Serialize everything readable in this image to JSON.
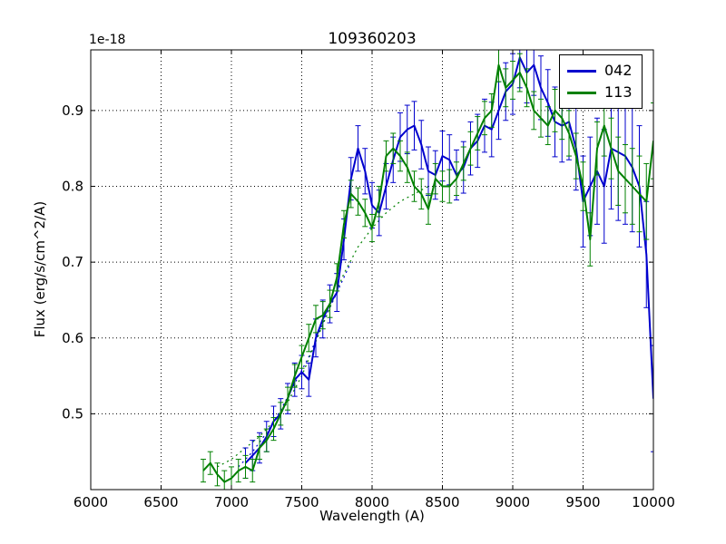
{
  "figure": {
    "title": "109360203",
    "offset_text": "1e-18",
    "xlabel": "Wavelength (A)",
    "ylabel": "Flux (erg/s/cm^2/A)"
  },
  "chart_data": {
    "type": "line",
    "title": "109360203",
    "xlabel": "Wavelength (A)",
    "ylabel": "Flux (erg/s/cm^2/A)",
    "y_offset_factor": "1e-18",
    "xlim": [
      6000,
      10000
    ],
    "ylim": [
      0.4,
      0.98
    ],
    "xticks": [
      6000,
      6500,
      7000,
      7500,
      8000,
      8500,
      9000,
      9500,
      10000
    ],
    "yticks": [
      0.5,
      0.6,
      0.7,
      0.8,
      0.9
    ],
    "grid": true,
    "grid_style": "dotted",
    "legend_position": "upper right",
    "series": [
      {
        "name": "042",
        "color": "#0000cd",
        "style": "solid",
        "in_legend": true,
        "x": [
          7100,
          7150,
          7200,
          7250,
          7300,
          7350,
          7400,
          7450,
          7500,
          7550,
          7600,
          7650,
          7700,
          7750,
          7800,
          7850,
          7900,
          7950,
          8000,
          8050,
          8100,
          8150,
          8200,
          8250,
          8300,
          8350,
          8400,
          8450,
          8500,
          8550,
          8600,
          8650,
          8700,
          8750,
          8800,
          8850,
          8900,
          8950,
          9000,
          9050,
          9100,
          9150,
          9200,
          9250,
          9300,
          9350,
          9400,
          9450,
          9500,
          9550,
          9600,
          9650,
          9700,
          9750,
          9800,
          9850,
          9900,
          9950,
          10000
        ],
        "y": [
          0.435,
          0.445,
          0.455,
          0.47,
          0.49,
          0.5,
          0.52,
          0.545,
          0.555,
          0.545,
          0.6,
          0.625,
          0.645,
          0.66,
          0.73,
          0.81,
          0.85,
          0.82,
          0.775,
          0.765,
          0.8,
          0.835,
          0.865,
          0.875,
          0.88,
          0.855,
          0.82,
          0.815,
          0.84,
          0.835,
          0.815,
          0.825,
          0.85,
          0.86,
          0.88,
          0.875,
          0.9,
          0.925,
          0.935,
          0.97,
          0.95,
          0.96,
          0.93,
          0.91,
          0.885,
          0.88,
          0.885,
          0.85,
          0.78,
          0.8,
          0.82,
          0.8,
          0.85,
          0.845,
          0.84,
          0.825,
          0.8,
          0.71,
          0.52
        ],
        "yerr": [
          0.02,
          0.02,
          0.02,
          0.02,
          0.02,
          0.02,
          0.02,
          0.022,
          0.022,
          0.022,
          0.025,
          0.025,
          0.025,
          0.025,
          0.027,
          0.028,
          0.03,
          0.03,
          0.03,
          0.03,
          0.03,
          0.03,
          0.032,
          0.032,
          0.032,
          0.032,
          0.032,
          0.032,
          0.033,
          0.033,
          0.033,
          0.034,
          0.035,
          0.035,
          0.035,
          0.036,
          0.038,
          0.038,
          0.04,
          0.04,
          0.04,
          0.04,
          0.042,
          0.044,
          0.046,
          0.048,
          0.05,
          0.055,
          0.06,
          0.065,
          0.07,
          0.075,
          0.08,
          0.09,
          0.09,
          0.085,
          0.08,
          0.07,
          0.07
        ]
      },
      {
        "name": "113",
        "color": "#008000",
        "style": "solid",
        "in_legend": true,
        "x": [
          6800,
          6850,
          6900,
          6950,
          7000,
          7050,
          7100,
          7150,
          7200,
          7250,
          7300,
          7350,
          7400,
          7450,
          7500,
          7550,
          7600,
          7650,
          7700,
          7750,
          7800,
          7850,
          7900,
          7950,
          8000,
          8050,
          8100,
          8150,
          8200,
          8250,
          8300,
          8350,
          8400,
          8450,
          8500,
          8550,
          8600,
          8650,
          8700,
          8750,
          8800,
          8850,
          8900,
          8950,
          9000,
          9050,
          9100,
          9150,
          9200,
          9250,
          9300,
          9350,
          9400,
          9450,
          9500,
          9550,
          9600,
          9650,
          9700,
          9750,
          9800,
          9850,
          9900,
          9950,
          10000
        ],
        "y": [
          0.425,
          0.435,
          0.42,
          0.41,
          0.415,
          0.425,
          0.43,
          0.425,
          0.455,
          0.465,
          0.48,
          0.5,
          0.52,
          0.55,
          0.575,
          0.6,
          0.625,
          0.63,
          0.645,
          0.68,
          0.75,
          0.79,
          0.78,
          0.765,
          0.745,
          0.78,
          0.84,
          0.85,
          0.84,
          0.825,
          0.8,
          0.79,
          0.77,
          0.81,
          0.8,
          0.8,
          0.81,
          0.83,
          0.85,
          0.87,
          0.89,
          0.9,
          0.96,
          0.93,
          0.94,
          0.95,
          0.93,
          0.9,
          0.89,
          0.88,
          0.9,
          0.89,
          0.87,
          0.84,
          0.8,
          0.73,
          0.85,
          0.88,
          0.85,
          0.82,
          0.81,
          0.8,
          0.79,
          0.78,
          0.86
        ],
        "yerr": [
          0.015,
          0.015,
          0.015,
          0.015,
          0.015,
          0.015,
          0.015,
          0.015,
          0.015,
          0.015,
          0.015,
          0.015,
          0.015,
          0.015,
          0.015,
          0.018,
          0.018,
          0.018,
          0.018,
          0.018,
          0.018,
          0.018,
          0.018,
          0.018,
          0.018,
          0.02,
          0.02,
          0.02,
          0.02,
          0.02,
          0.02,
          0.02,
          0.02,
          0.02,
          0.02,
          0.022,
          0.022,
          0.022,
          0.022,
          0.022,
          0.022,
          0.022,
          0.022,
          0.025,
          0.025,
          0.025,
          0.025,
          0.025,
          0.025,
          0.025,
          0.028,
          0.028,
          0.03,
          0.03,
          0.032,
          0.035,
          0.035,
          0.04,
          0.04,
          0.045,
          0.045,
          0.05,
          0.05,
          0.05,
          0.05
        ]
      },
      {
        "name": "042 template",
        "color": "#0000cd",
        "style": "dotted",
        "in_legend": false,
        "x": [
          7050,
          7150,
          7250,
          7350,
          7450,
          7550,
          7650,
          7750,
          7850
        ],
        "y": [
          0.43,
          0.45,
          0.475,
          0.505,
          0.54,
          0.575,
          0.62,
          0.66,
          0.7
        ]
      },
      {
        "name": "113 template",
        "color": "#008000",
        "style": "dotted",
        "in_legend": false,
        "x": [
          6900,
          7000,
          7100,
          7200,
          7300,
          7400,
          7500,
          7600,
          7700,
          7800,
          7900,
          8000,
          8100,
          8200,
          8300,
          8400
        ],
        "y": [
          0.43,
          0.44,
          0.455,
          0.47,
          0.49,
          0.515,
          0.55,
          0.595,
          0.64,
          0.685,
          0.72,
          0.745,
          0.765,
          0.78,
          0.79,
          0.8
        ]
      }
    ]
  }
}
